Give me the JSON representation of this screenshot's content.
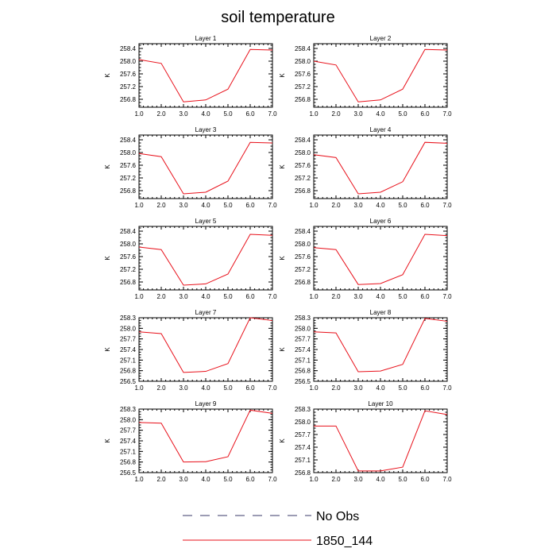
{
  "figure": {
    "title": "soil temperature"
  },
  "legend": {
    "entries": [
      {
        "label": "No Obs",
        "color": "#3a3a6a",
        "style": "dashed"
      },
      {
        "label": "1850_144",
        "color": "#e8101a",
        "style": "solid"
      }
    ]
  },
  "chart_data": [
    {
      "type": "line",
      "title": "Layer 1",
      "ylabel": "K",
      "x": [
        1,
        2,
        3,
        4,
        5,
        6,
        7
      ],
      "xticks": [
        "1.0",
        "2.0",
        "3.0",
        "4.0",
        "5.0",
        "6.0",
        "7.0"
      ],
      "xlim": [
        1,
        7
      ],
      "ylim": [
        256.55,
        258.55
      ],
      "yticks": [
        256.8,
        257.2,
        257.6,
        258.0,
        258.4
      ],
      "ytick_labels": [
        "256.8",
        "257.2",
        "257.6",
        "258.0",
        "258.4"
      ],
      "series": [
        {
          "name": "1850_144",
          "color": "#e8101a",
          "values": [
            258.05,
            257.93,
            256.72,
            256.78,
            257.12,
            258.37,
            258.35
          ]
        }
      ]
    },
    {
      "type": "line",
      "title": "Layer 2",
      "ylabel": "K",
      "x": [
        1,
        2,
        3,
        4,
        5,
        6,
        7
      ],
      "xticks": [
        "1.0",
        "2.0",
        "3.0",
        "4.0",
        "5.0",
        "6.0",
        "7.0"
      ],
      "xlim": [
        1,
        7
      ],
      "ylim": [
        256.55,
        258.55
      ],
      "yticks": [
        256.8,
        257.2,
        257.6,
        258.0,
        258.4
      ],
      "ytick_labels": [
        "256.8",
        "257.2",
        "257.6",
        "258.0",
        "258.4"
      ],
      "series": [
        {
          "name": "1850_144",
          "color": "#e8101a",
          "values": [
            258.0,
            257.88,
            256.72,
            256.78,
            257.12,
            258.37,
            258.35
          ]
        }
      ]
    },
    {
      "type": "line",
      "title": "Layer 3",
      "ylabel": "K",
      "x": [
        1,
        2,
        3,
        4,
        5,
        6,
        7
      ],
      "xticks": [
        "1.0",
        "2.0",
        "3.0",
        "4.0",
        "5.0",
        "6.0",
        "7.0"
      ],
      "xlim": [
        1,
        7
      ],
      "ylim": [
        256.55,
        258.55
      ],
      "yticks": [
        256.8,
        257.2,
        257.6,
        258.0,
        258.4
      ],
      "ytick_labels": [
        "256.8",
        "257.2",
        "257.6",
        "258.0",
        "258.4"
      ],
      "series": [
        {
          "name": "1850_144",
          "color": "#e8101a",
          "values": [
            257.97,
            257.87,
            256.7,
            256.75,
            257.1,
            258.32,
            258.3
          ]
        }
      ]
    },
    {
      "type": "line",
      "title": "Layer 4",
      "ylabel": "K",
      "x": [
        1,
        2,
        3,
        4,
        5,
        6,
        7
      ],
      "xticks": [
        "1.0",
        "2.0",
        "3.0",
        "4.0",
        "5.0",
        "6.0",
        "7.0"
      ],
      "xlim": [
        1,
        7
      ],
      "ylim": [
        256.55,
        258.55
      ],
      "yticks": [
        256.8,
        257.2,
        257.6,
        258.0,
        258.4
      ],
      "ytick_labels": [
        "256.8",
        "257.2",
        "257.6",
        "258.0",
        "258.4"
      ],
      "series": [
        {
          "name": "1850_144",
          "color": "#e8101a",
          "values": [
            257.93,
            257.84,
            256.7,
            256.75,
            257.08,
            258.32,
            258.29
          ]
        }
      ]
    },
    {
      "type": "line",
      "title": "Layer 5",
      "ylabel": "K",
      "x": [
        1,
        2,
        3,
        4,
        5,
        6,
        7
      ],
      "xticks": [
        "1.0",
        "2.0",
        "3.0",
        "4.0",
        "5.0",
        "6.0",
        "7.0"
      ],
      "xlim": [
        1,
        7
      ],
      "ylim": [
        256.55,
        258.55
      ],
      "yticks": [
        256.8,
        257.2,
        257.6,
        258.0,
        258.4
      ],
      "ytick_labels": [
        "256.8",
        "257.2",
        "257.6",
        "258.0",
        "258.4"
      ],
      "series": [
        {
          "name": "1850_144",
          "color": "#e8101a",
          "values": [
            257.9,
            257.82,
            256.7,
            256.74,
            257.05,
            258.3,
            258.27
          ]
        }
      ]
    },
    {
      "type": "line",
      "title": "Layer 6",
      "ylabel": "K",
      "x": [
        1,
        2,
        3,
        4,
        5,
        6,
        7
      ],
      "xticks": [
        "1.0",
        "2.0",
        "3.0",
        "4.0",
        "5.0",
        "6.0",
        "7.0"
      ],
      "xlim": [
        1,
        7
      ],
      "ylim": [
        256.55,
        258.55
      ],
      "yticks": [
        256.8,
        257.2,
        257.6,
        258.0,
        258.4
      ],
      "ytick_labels": [
        "256.8",
        "257.2",
        "257.6",
        "258.0",
        "258.4"
      ],
      "series": [
        {
          "name": "1850_144",
          "color": "#e8101a",
          "values": [
            257.88,
            257.82,
            256.72,
            256.75,
            257.03,
            258.3,
            258.26
          ]
        }
      ]
    },
    {
      "type": "line",
      "title": "Layer 7",
      "ylabel": "K",
      "x": [
        1,
        2,
        3,
        4,
        5,
        6,
        7
      ],
      "xticks": [
        "1.0",
        "2.0",
        "3.0",
        "4.0",
        "5.0",
        "6.0",
        "7.0"
      ],
      "xlim": [
        1,
        7
      ],
      "ylim": [
        256.5,
        258.3
      ],
      "yticks": [
        256.5,
        256.8,
        257.1,
        257.4,
        257.7,
        258.0,
        258.3
      ],
      "ytick_labels": [
        "256.5",
        "256.8",
        "257.1",
        "257.4",
        "257.7",
        "258.0",
        "258.3"
      ],
      "series": [
        {
          "name": "1850_144",
          "color": "#e8101a",
          "values": [
            257.9,
            257.85,
            256.75,
            256.78,
            257.0,
            258.3,
            258.22
          ]
        }
      ]
    },
    {
      "type": "line",
      "title": "Layer 8",
      "ylabel": "K",
      "x": [
        1,
        2,
        3,
        4,
        5,
        6,
        7
      ],
      "xticks": [
        "1.0",
        "2.0",
        "3.0",
        "4.0",
        "5.0",
        "6.0",
        "7.0"
      ],
      "xlim": [
        1,
        7
      ],
      "ylim": [
        256.5,
        258.3
      ],
      "yticks": [
        256.5,
        256.8,
        257.1,
        257.4,
        257.7,
        258.0,
        258.3
      ],
      "ytick_labels": [
        "256.5",
        "256.8",
        "257.1",
        "257.4",
        "257.7",
        "258.0",
        "258.3"
      ],
      "series": [
        {
          "name": "1850_144",
          "color": "#e8101a",
          "values": [
            257.9,
            257.87,
            256.77,
            256.79,
            256.98,
            258.28,
            258.2
          ]
        }
      ]
    },
    {
      "type": "line",
      "title": "Layer 9",
      "ylabel": "K",
      "x": [
        1,
        2,
        3,
        4,
        5,
        6,
        7
      ],
      "xticks": [
        "1.0",
        "2.0",
        "3.0",
        "4.0",
        "5.0",
        "6.0",
        "7.0"
      ],
      "xlim": [
        1,
        7
      ],
      "ylim": [
        256.5,
        258.3
      ],
      "yticks": [
        256.5,
        256.8,
        257.1,
        257.4,
        257.7,
        258.0,
        258.3
      ],
      "ytick_labels": [
        "256.5",
        "256.8",
        "257.1",
        "257.4",
        "257.7",
        "258.0",
        "258.3"
      ],
      "series": [
        {
          "name": "1850_144",
          "color": "#e8101a",
          "values": [
            257.92,
            257.9,
            256.8,
            256.81,
            256.95,
            258.27,
            258.18
          ]
        }
      ]
    },
    {
      "type": "line",
      "title": "Layer 10",
      "ylabel": "K",
      "x": [
        1,
        2,
        3,
        4,
        5,
        6,
        7
      ],
      "xticks": [
        "1.0",
        "2.0",
        "3.0",
        "4.0",
        "5.0",
        "6.0",
        "7.0"
      ],
      "xlim": [
        1,
        7
      ],
      "ylim": [
        256.8,
        258.3
      ],
      "yticks": [
        256.8,
        257.1,
        257.4,
        257.7,
        258.0,
        258.3
      ],
      "ytick_labels": [
        "256.8",
        "257.1",
        "257.4",
        "257.7",
        "258.0",
        "258.3"
      ],
      "series": [
        {
          "name": "1850_144",
          "color": "#e8101a",
          "values": [
            257.9,
            257.9,
            256.84,
            256.84,
            256.93,
            258.26,
            258.17
          ]
        }
      ]
    }
  ]
}
